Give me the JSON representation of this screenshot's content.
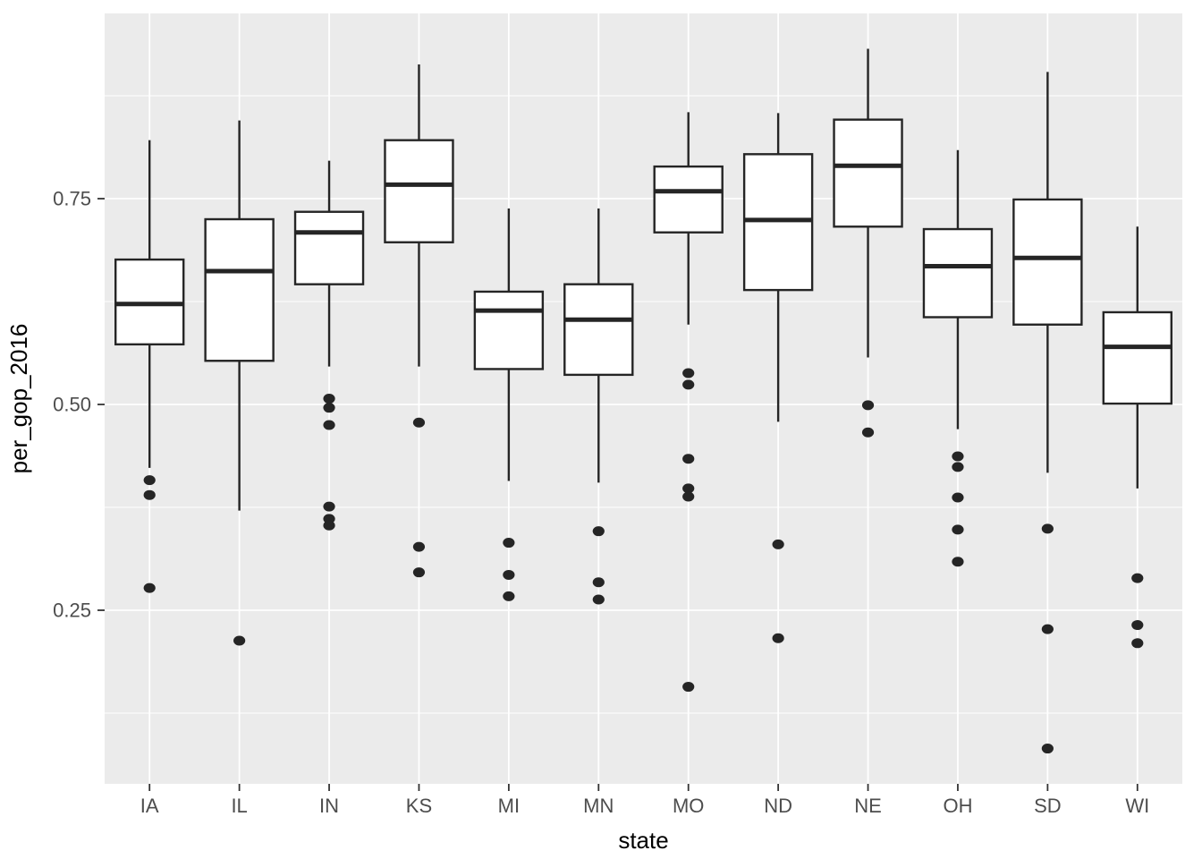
{
  "chart_data": {
    "type": "boxplot",
    "title": "",
    "xlabel": "state",
    "ylabel": "per_gop_2016",
    "categories": [
      "IA",
      "IL",
      "IN",
      "KS",
      "MI",
      "MN",
      "MO",
      "ND",
      "NE",
      "OH",
      "SD",
      "WI"
    ],
    "yticks": [
      {
        "value": 0.75,
        "label": "0.75"
      },
      {
        "value": 0.5,
        "label": "0.50"
      },
      {
        "value": 0.25,
        "label": "0.25"
      }
    ],
    "minor_gridlines": [
      0.875,
      0.625,
      0.375,
      0.125
    ],
    "ylim": [
      0.04,
      0.975
    ],
    "legend_position": "none",
    "grid": "on",
    "series": [
      {
        "state": "IA",
        "whisker_low": 0.423,
        "q1": 0.573,
        "median": 0.622,
        "q3": 0.676,
        "whisker_high": 0.821,
        "outliers": [
          0.408,
          0.39,
          0.277
        ]
      },
      {
        "state": "IL",
        "whisker_low": 0.371,
        "q1": 0.553,
        "median": 0.662,
        "q3": 0.725,
        "whisker_high": 0.845,
        "outliers": [
          0.213
        ]
      },
      {
        "state": "IN",
        "whisker_low": 0.546,
        "q1": 0.646,
        "median": 0.709,
        "q3": 0.734,
        "whisker_high": 0.796,
        "outliers": [
          0.507,
          0.496,
          0.475,
          0.376,
          0.361,
          0.353
        ]
      },
      {
        "state": "KS",
        "whisker_low": 0.546,
        "q1": 0.697,
        "median": 0.767,
        "q3": 0.821,
        "whisker_high": 0.913,
        "outliers": [
          0.478,
          0.327,
          0.296
        ]
      },
      {
        "state": "MI",
        "whisker_low": 0.407,
        "q1": 0.543,
        "median": 0.614,
        "q3": 0.637,
        "whisker_high": 0.738,
        "outliers": [
          0.332,
          0.293,
          0.267
        ]
      },
      {
        "state": "MN",
        "whisker_low": 0.405,
        "q1": 0.536,
        "median": 0.603,
        "q3": 0.646,
        "whisker_high": 0.738,
        "outliers": [
          0.346,
          0.284,
          0.263
        ]
      },
      {
        "state": "MO",
        "whisker_low": 0.597,
        "q1": 0.709,
        "median": 0.759,
        "q3": 0.789,
        "whisker_high": 0.855,
        "outliers": [
          0.538,
          0.524,
          0.434,
          0.398,
          0.388,
          0.157
        ]
      },
      {
        "state": "ND",
        "whisker_low": 0.479,
        "q1": 0.639,
        "median": 0.724,
        "q3": 0.804,
        "whisker_high": 0.854,
        "outliers": [
          0.33,
          0.216
        ]
      },
      {
        "state": "NE",
        "whisker_low": 0.557,
        "q1": 0.716,
        "median": 0.79,
        "q3": 0.846,
        "whisker_high": 0.932,
        "outliers": [
          0.499,
          0.466
        ]
      },
      {
        "state": "OH",
        "whisker_low": 0.47,
        "q1": 0.606,
        "median": 0.668,
        "q3": 0.713,
        "whisker_high": 0.809,
        "outliers": [
          0.437,
          0.424,
          0.387,
          0.348,
          0.309
        ]
      },
      {
        "state": "SD",
        "whisker_low": 0.417,
        "q1": 0.597,
        "median": 0.678,
        "q3": 0.749,
        "whisker_high": 0.904,
        "outliers": [
          0.349,
          0.227,
          0.082
        ]
      },
      {
        "state": "WI",
        "whisker_low": 0.398,
        "q1": 0.501,
        "median": 0.57,
        "q3": 0.612,
        "whisker_high": 0.716,
        "outliers": [
          0.289,
          0.232,
          0.21
        ]
      }
    ],
    "style": {
      "panel_background": "#EBEBEB",
      "gridline_color": "#FFFFFF",
      "box_stroke": "#252525",
      "box_fill": "#FFFFFF",
      "outlier_fill": "#252525",
      "tick_mark_color": "#333333",
      "tick_label_color": "#4D4D4D",
      "axis_title_color": "#000000"
    }
  }
}
